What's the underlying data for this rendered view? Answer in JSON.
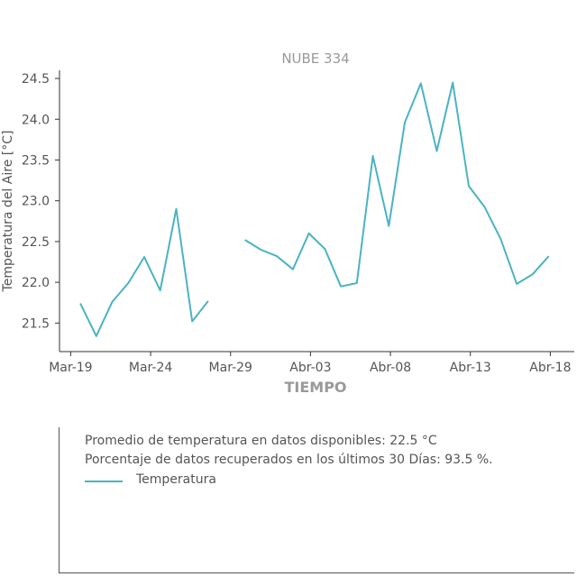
{
  "chart_data": {
    "type": "line",
    "title": "NUBE 334",
    "xlabel": "TIEMPO",
    "ylabel": "Temperatura del Aire [°C]",
    "x_ticks": [
      "Mar-19",
      "Mar-24",
      "Mar-29",
      "Abr-03",
      "Abr-08",
      "Abr-13",
      "Abr-18"
    ],
    "y_ticks": [
      "21.5",
      "22.0",
      "22.5",
      "23.0",
      "23.5",
      "24.0",
      "24.5"
    ],
    "x_tick_days": [
      0,
      5,
      10,
      15,
      20,
      25,
      30
    ],
    "y_tick_values": [
      21.5,
      22.0,
      22.5,
      23.0,
      23.5,
      24.0,
      24.5
    ],
    "xlim": [
      -0.7,
      31.5
    ],
    "ylim": [
      21.15,
      24.6
    ],
    "grid": false,
    "series": [
      {
        "name": "Temperatura",
        "color": "#4ab3c4",
        "segments": [
          [
            [
              0.6,
              21.74
            ],
            [
              1.6,
              21.34
            ],
            [
              2.6,
              21.76
            ],
            [
              3.6,
              21.99
            ],
            [
              4.6,
              22.31
            ],
            [
              5.6,
              21.9
            ],
            [
              6.6,
              22.9
            ],
            [
              7.6,
              21.52
            ],
            [
              8.6,
              21.77
            ]
          ],
          [
            [
              10.9,
              22.52
            ],
            [
              11.9,
              22.4
            ],
            [
              12.9,
              22.32
            ],
            [
              13.9,
              22.16
            ],
            [
              14.9,
              22.6
            ],
            [
              15.9,
              22.41
            ],
            [
              16.9,
              21.95
            ],
            [
              17.9,
              21.99
            ],
            [
              18.9,
              23.55
            ],
            [
              19.9,
              22.69
            ],
            [
              20.9,
              23.96
            ],
            [
              21.9,
              24.44
            ],
            [
              22.9,
              23.61
            ],
            [
              23.9,
              24.45
            ],
            [
              24.9,
              23.18
            ],
            [
              25.9,
              22.92
            ],
            [
              26.9,
              22.53
            ],
            [
              27.9,
              21.98
            ],
            [
              28.9,
              22.1
            ],
            [
              29.9,
              22.32
            ]
          ]
        ]
      }
    ]
  },
  "info": {
    "line1": "Promedio de temperatura en datos disponibles: 22.5 °C",
    "line2": "Porcentaje de datos recuperados en los últimos 30 Días: 93.5 %.",
    "legend_label": "Temperatura"
  }
}
